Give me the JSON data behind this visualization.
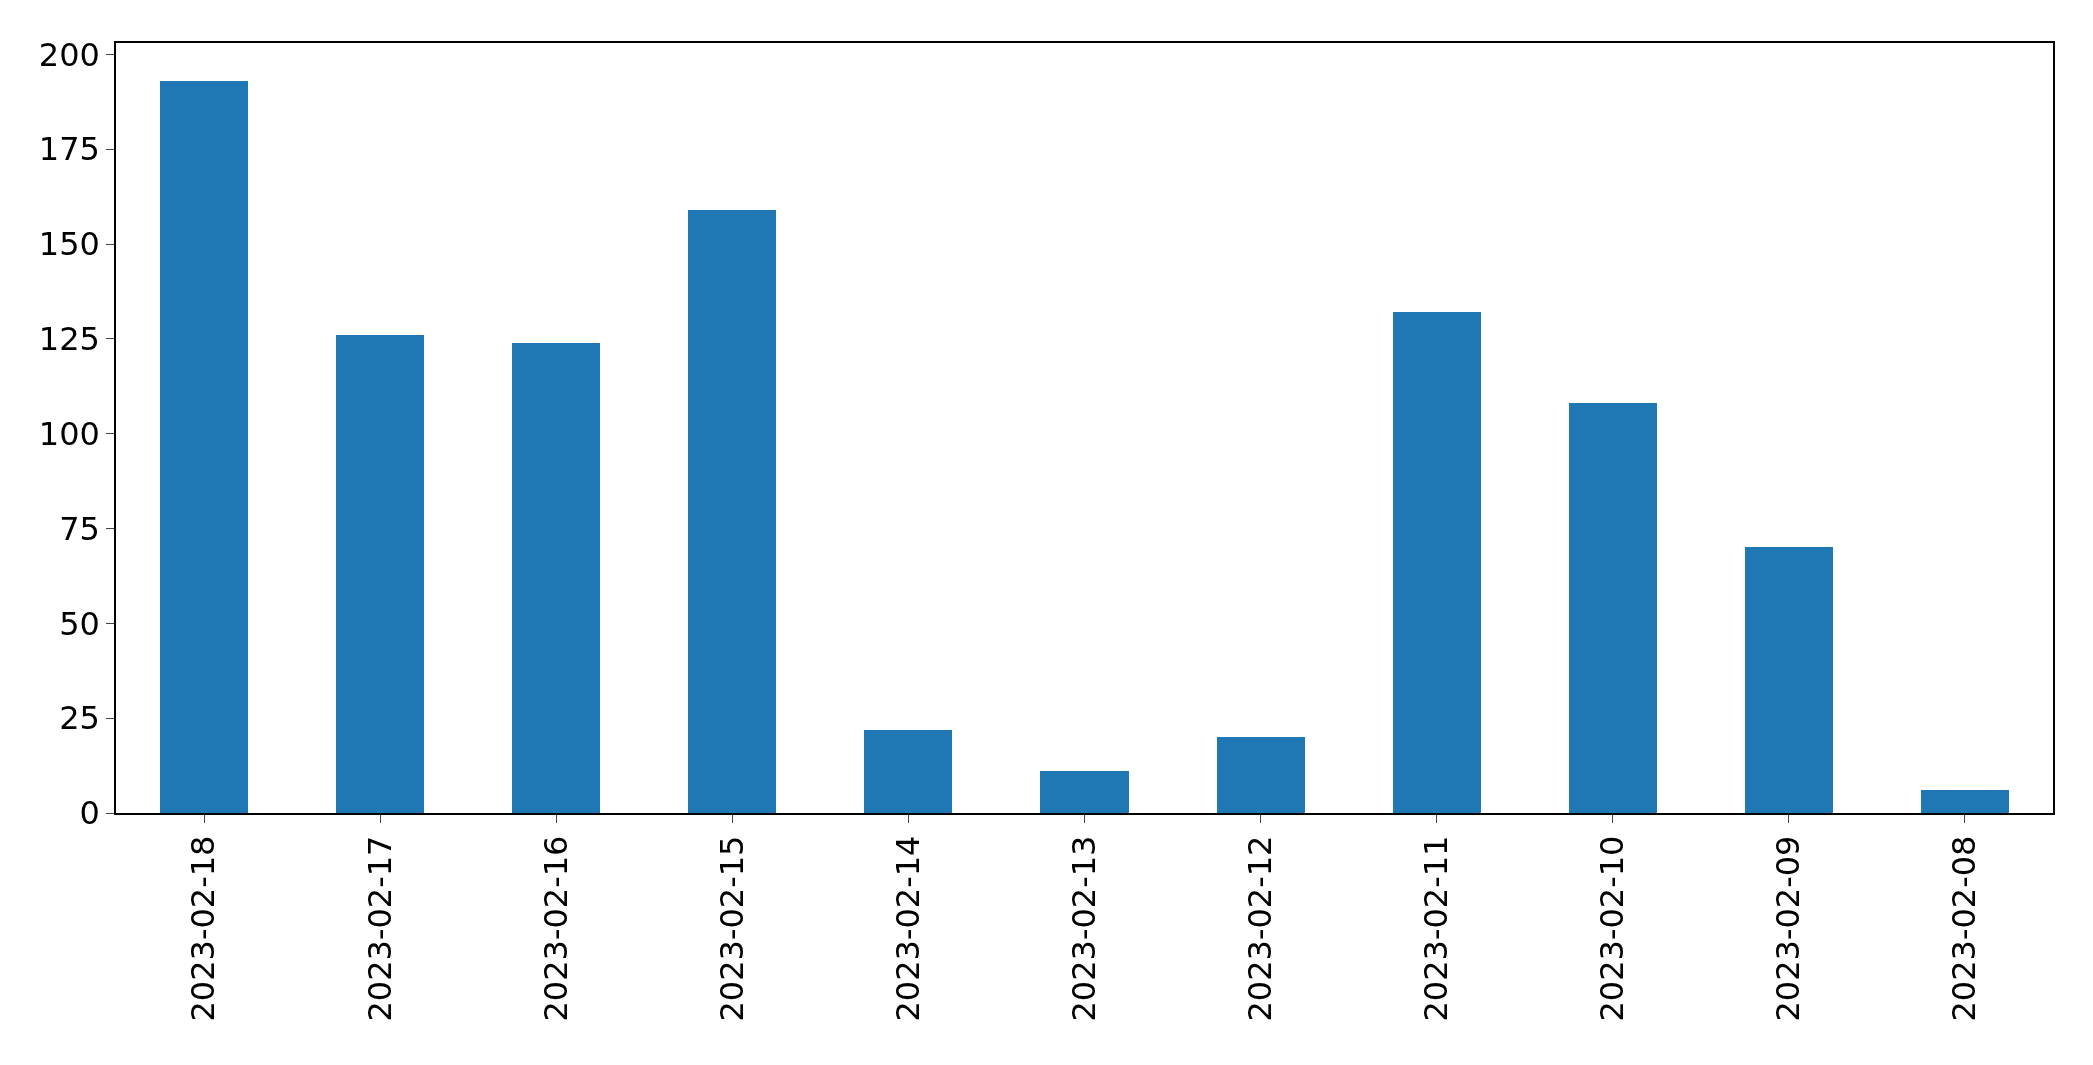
{
  "chart_data": {
    "type": "bar",
    "categories": [
      "2023-02-18",
      "2023-02-17",
      "2023-02-16",
      "2023-02-15",
      "2023-02-14",
      "2023-02-13",
      "2023-02-12",
      "2023-02-11",
      "2023-02-10",
      "2023-02-09",
      "2023-02-08"
    ],
    "values": [
      193,
      126,
      124,
      159,
      22,
      11,
      20,
      132,
      108,
      70,
      6
    ],
    "color": "#1f77b4",
    "ylim": [
      0,
      203
    ],
    "yticks": [
      0,
      25,
      50,
      75,
      100,
      125,
      150,
      175,
      200
    ]
  }
}
